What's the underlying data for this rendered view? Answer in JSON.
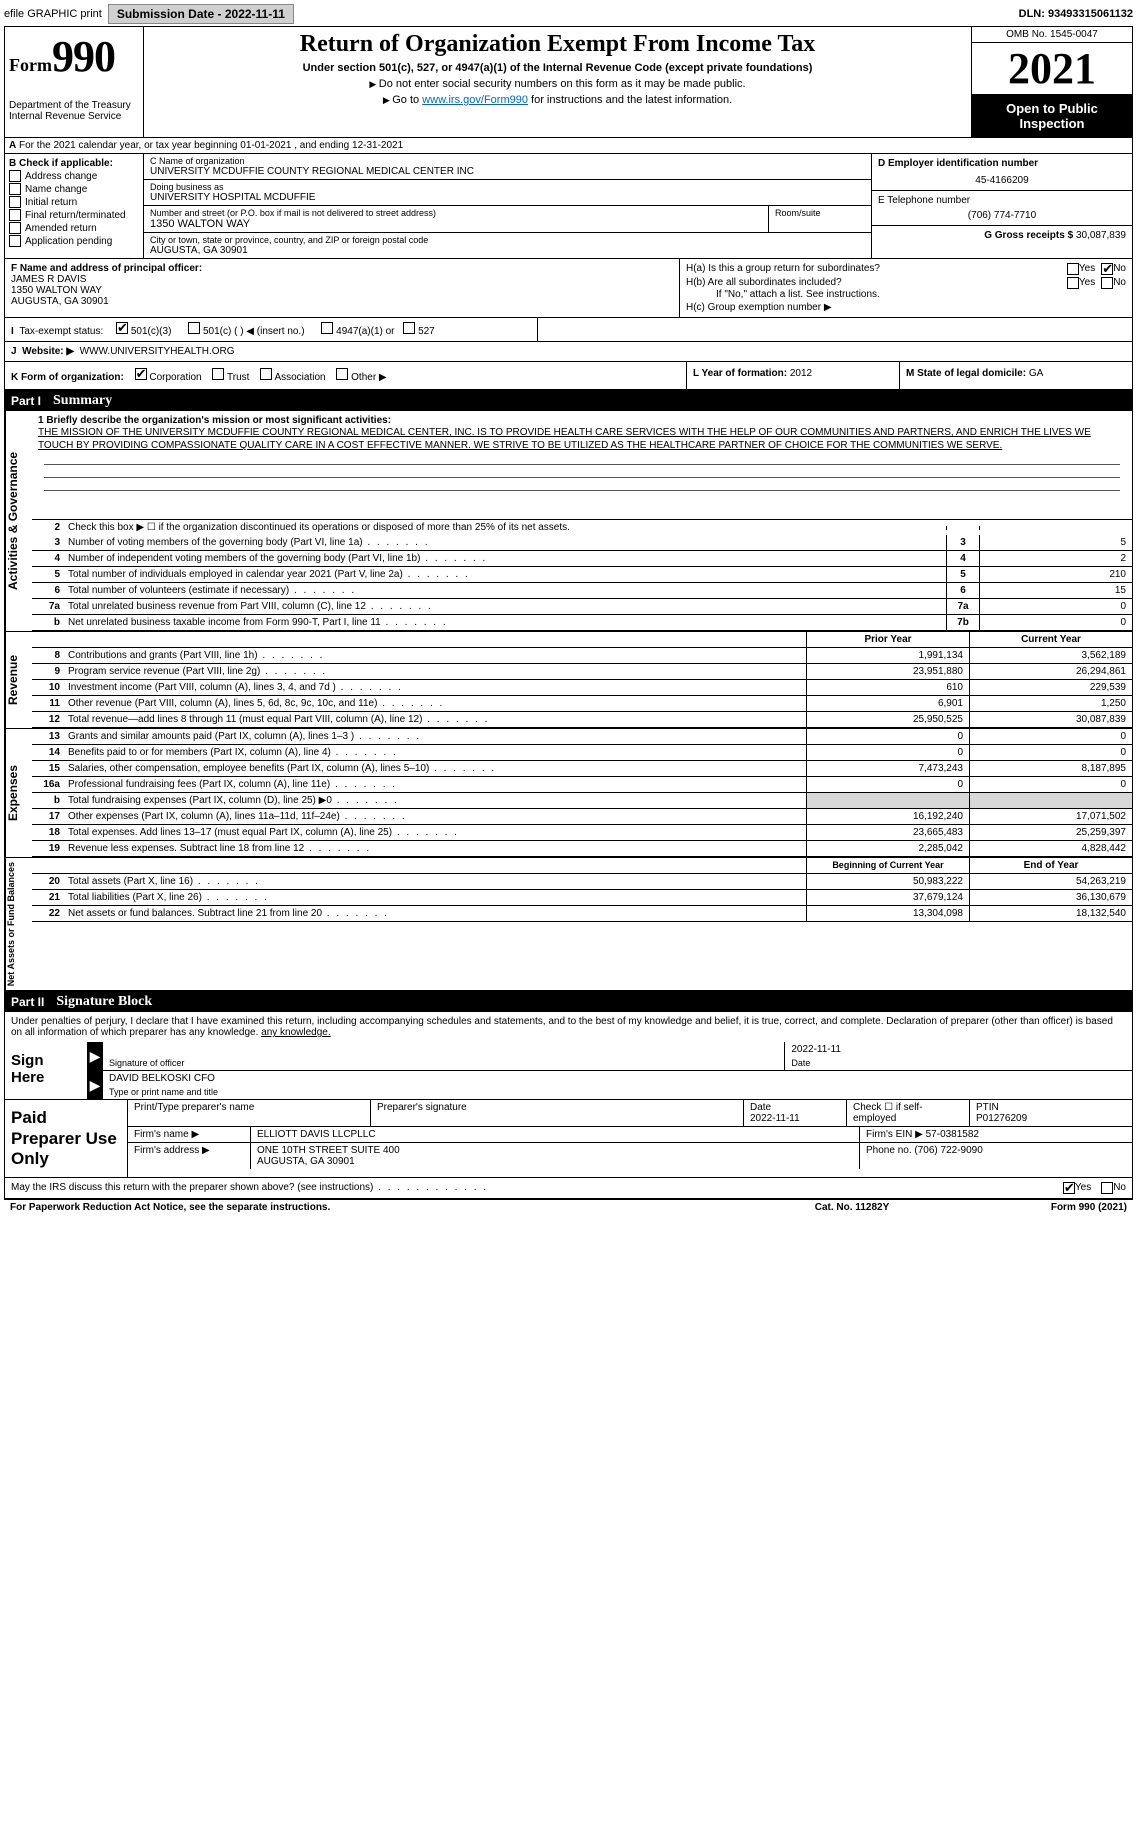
{
  "topbar": {
    "efile": "efile GRAPHIC print",
    "submission_label": "Submission Date - ",
    "submission_date": "2022-11-11",
    "dln_label": "DLN: ",
    "dln": "93493315061132"
  },
  "header": {
    "form_label": "Form",
    "form_num": "990",
    "dept": "Department of the Treasury\nInternal Revenue Service",
    "title": "Return of Organization Exempt From Income Tax",
    "subtitle": "Under section 501(c), 527, or 4947(a)(1) of the Internal Revenue Code (except private foundations)",
    "note1": "Do not enter social security numbers on this form as it may be made public.",
    "note2_pre": "Go to ",
    "note2_link": "www.irs.gov/Form990",
    "note2_post": " for instructions and the latest information.",
    "omb": "OMB No. 1545-0047",
    "year": "2021",
    "open": "Open to Public Inspection"
  },
  "row_a": "For the 2021 calendar year, or tax year beginning 01-01-2021    , and ending 12-31-2021",
  "section_b": {
    "header": "B Check if applicable:",
    "opts": [
      "Address change",
      "Name change",
      "Initial return",
      "Final return/terminated",
      "Amended return",
      "Application pending"
    ]
  },
  "section_c": {
    "name_lbl": "C Name of organization",
    "name": "UNIVERSITY MCDUFFIE COUNTY REGIONAL MEDICAL CENTER INC",
    "dba_lbl": "Doing business as",
    "dba": "UNIVERSITY HOSPITAL MCDUFFIE",
    "street_lbl": "Number and street (or P.O. box if mail is not delivered to street address)",
    "street": "1350 WALTON WAY",
    "room_lbl": "Room/suite",
    "city_lbl": "City or town, state or province, country, and ZIP or foreign postal code",
    "city": "AUGUSTA, GA  30901"
  },
  "section_d": {
    "lbl": "D Employer identification number",
    "val": "45-4166209"
  },
  "section_e": {
    "lbl": "E Telephone number",
    "val": "(706) 774-7710"
  },
  "section_g": {
    "lbl": "G Gross receipts $",
    "val": "30,087,839"
  },
  "section_f": {
    "lbl": "F  Name and address of principal officer:",
    "name": "JAMES R DAVIS",
    "addr1": "1350 WALTON WAY",
    "addr2": "AUGUSTA, GA  30901"
  },
  "section_h": {
    "a": "H(a)  Is this a group return for subordinates?",
    "b": "H(b)  Are all subordinates included?",
    "b_note": "If \"No,\" attach a list. See instructions.",
    "c": "H(c)  Group exemption number ▶",
    "yes": "Yes",
    "no": "No"
  },
  "section_i": {
    "lbl": "Tax-exempt status:",
    "opts": [
      "501(c)(3)",
      "501(c) (   ) ◀ (insert no.)",
      "4947(a)(1) or",
      "527"
    ]
  },
  "section_j": {
    "lbl": "Website: ▶",
    "val": "WWW.UNIVERSITYHEALTH.ORG"
  },
  "section_k": {
    "lbl": "K Form of organization:",
    "opts": [
      "Corporation",
      "Trust",
      "Association",
      "Other ▶"
    ]
  },
  "section_l": {
    "lbl": "L Year of formation:",
    "val": "2012"
  },
  "section_m": {
    "lbl": "M State of legal domicile:",
    "val": "GA"
  },
  "part1": {
    "num": "Part I",
    "title": "Summary"
  },
  "mission": {
    "lbl": "1  Briefly describe the organization's mission or most significant activities:",
    "text": "THE MISSION OF THE UNIVERSITY MCDUFFIE COUNTY REGIONAL MEDICAL CENTER, INC. IS TO PROVIDE HEALTH CARE SERVICES WITH THE HELP OF OUR COMMUNITIES AND PARTNERS, AND ENRICH THE LIVES WE TOUCH BY PROVIDING COMPASSIONATE QUALITY CARE IN A COST EFFECTIVE MANNER. WE STRIVE TO BE UTILIZED AS THE HEALTHCARE PARTNER OF CHOICE FOR THE COMMUNITIES WE SERVE."
  },
  "vtabs": {
    "ag": "Activities & Governance",
    "rev": "Revenue",
    "exp": "Expenses",
    "na": "Net Assets or Fund Balances"
  },
  "lines_ag": [
    {
      "n": "2",
      "d": "Check this box ▶ ☐  if the organization discontinued its operations or disposed of more than 25% of its net assets.",
      "box": "",
      "v": ""
    },
    {
      "n": "3",
      "d": "Number of voting members of the governing body (Part VI, line 1a)",
      "box": "3",
      "v": "5"
    },
    {
      "n": "4",
      "d": "Number of independent voting members of the governing body (Part VI, line 1b)",
      "box": "4",
      "v": "2"
    },
    {
      "n": "5",
      "d": "Total number of individuals employed in calendar year 2021 (Part V, line 2a)",
      "box": "5",
      "v": "210"
    },
    {
      "n": "6",
      "d": "Total number of volunteers (estimate if necessary)",
      "box": "6",
      "v": "15"
    },
    {
      "n": "7a",
      "d": "Total unrelated business revenue from Part VIII, column (C), line 12",
      "box": "7a",
      "v": "0"
    },
    {
      "n": "b",
      "d": "Net unrelated business taxable income from Form 990-T, Part I, line 11",
      "box": "7b",
      "v": "0"
    }
  ],
  "col_hdr": {
    "py": "Prior Year",
    "cy": "Current Year"
  },
  "lines_rev": [
    {
      "n": "8",
      "d": "Contributions and grants (Part VIII, line 1h)",
      "py": "1,991,134",
      "cy": "3,562,189"
    },
    {
      "n": "9",
      "d": "Program service revenue (Part VIII, line 2g)",
      "py": "23,951,880",
      "cy": "26,294,861"
    },
    {
      "n": "10",
      "d": "Investment income (Part VIII, column (A), lines 3, 4, and 7d )",
      "py": "610",
      "cy": "229,539"
    },
    {
      "n": "11",
      "d": "Other revenue (Part VIII, column (A), lines 5, 6d, 8c, 9c, 10c, and 11e)",
      "py": "6,901",
      "cy": "1,250"
    },
    {
      "n": "12",
      "d": "Total revenue—add lines 8 through 11 (must equal Part VIII, column (A), line 12)",
      "py": "25,950,525",
      "cy": "30,087,839"
    }
  ],
  "lines_exp": [
    {
      "n": "13",
      "d": "Grants and similar amounts paid (Part IX, column (A), lines 1–3 )",
      "py": "0",
      "cy": "0"
    },
    {
      "n": "14",
      "d": "Benefits paid to or for members (Part IX, column (A), line 4)",
      "py": "0",
      "cy": "0"
    },
    {
      "n": "15",
      "d": "Salaries, other compensation, employee benefits (Part IX, column (A), lines 5–10)",
      "py": "7,473,243",
      "cy": "8,187,895"
    },
    {
      "n": "16a",
      "d": "Professional fundraising fees (Part IX, column (A), line 11e)",
      "py": "0",
      "cy": "0"
    },
    {
      "n": "b",
      "d": "Total fundraising expenses (Part IX, column (D), line 25) ▶0",
      "py": "",
      "cy": "",
      "shade": true
    },
    {
      "n": "17",
      "d": "Other expenses (Part IX, column (A), lines 11a–11d, 11f–24e)",
      "py": "16,192,240",
      "cy": "17,071,502"
    },
    {
      "n": "18",
      "d": "Total expenses. Add lines 13–17 (must equal Part IX, column (A), line 25)",
      "py": "23,665,483",
      "cy": "25,259,397"
    },
    {
      "n": "19",
      "d": "Revenue less expenses. Subtract line 18 from line 12",
      "py": "2,285,042",
      "cy": "4,828,442"
    }
  ],
  "col_hdr2": {
    "py": "Beginning of Current Year",
    "cy": "End of Year"
  },
  "lines_na": [
    {
      "n": "20",
      "d": "Total assets (Part X, line 16)",
      "py": "50,983,222",
      "cy": "54,263,219"
    },
    {
      "n": "21",
      "d": "Total liabilities (Part X, line 26)",
      "py": "37,679,124",
      "cy": "36,130,679"
    },
    {
      "n": "22",
      "d": "Net assets or fund balances. Subtract line 21 from line 20",
      "py": "13,304,098",
      "cy": "18,132,540"
    }
  ],
  "part2": {
    "num": "Part II",
    "title": "Signature Block"
  },
  "sig": {
    "intro": "Under penalties of perjury, I declare that I have examined this return, including accompanying schedules and statements, and to the best of my knowledge and belief, it is true, correct, and complete. Declaration of preparer (other than officer) is based on all information of which preparer has any knowledge.",
    "sign_here": "Sign Here",
    "sig_officer_lbl": "Signature of officer",
    "date_lbl": "Date",
    "date": "2022-11-11",
    "name": "DAVID BELKOSKI  CFO",
    "name_lbl": "Type or print name and title"
  },
  "paid": {
    "label": "Paid Preparer Use Only",
    "h1": "Print/Type preparer's name",
    "h2": "Preparer's signature",
    "h3": "Date",
    "h3v": "2022-11-11",
    "h4": "Check ☐ if self-employed",
    "h5": "PTIN",
    "h5v": "P01276209",
    "firm_name_lbl": "Firm's name    ▶",
    "firm_name": "ELLIOTT DAVIS LLCPLLC",
    "firm_ein_lbl": "Firm's EIN ▶",
    "firm_ein": "57-0381582",
    "firm_addr_lbl": "Firm's address ▶",
    "firm_addr1": "ONE 10TH STREET SUITE 400",
    "firm_addr2": "AUGUSTA, GA  30901",
    "phone_lbl": "Phone no.",
    "phone": "(706) 722-9090"
  },
  "discuss": {
    "q": "May the IRS discuss this return with the preparer shown above? (see instructions)",
    "yes": "Yes",
    "no": "No"
  },
  "footer": {
    "l": "For Paperwork Reduction Act Notice, see the separate instructions.",
    "m": "Cat. No. 11282Y",
    "r": "Form 990 (2021)"
  }
}
